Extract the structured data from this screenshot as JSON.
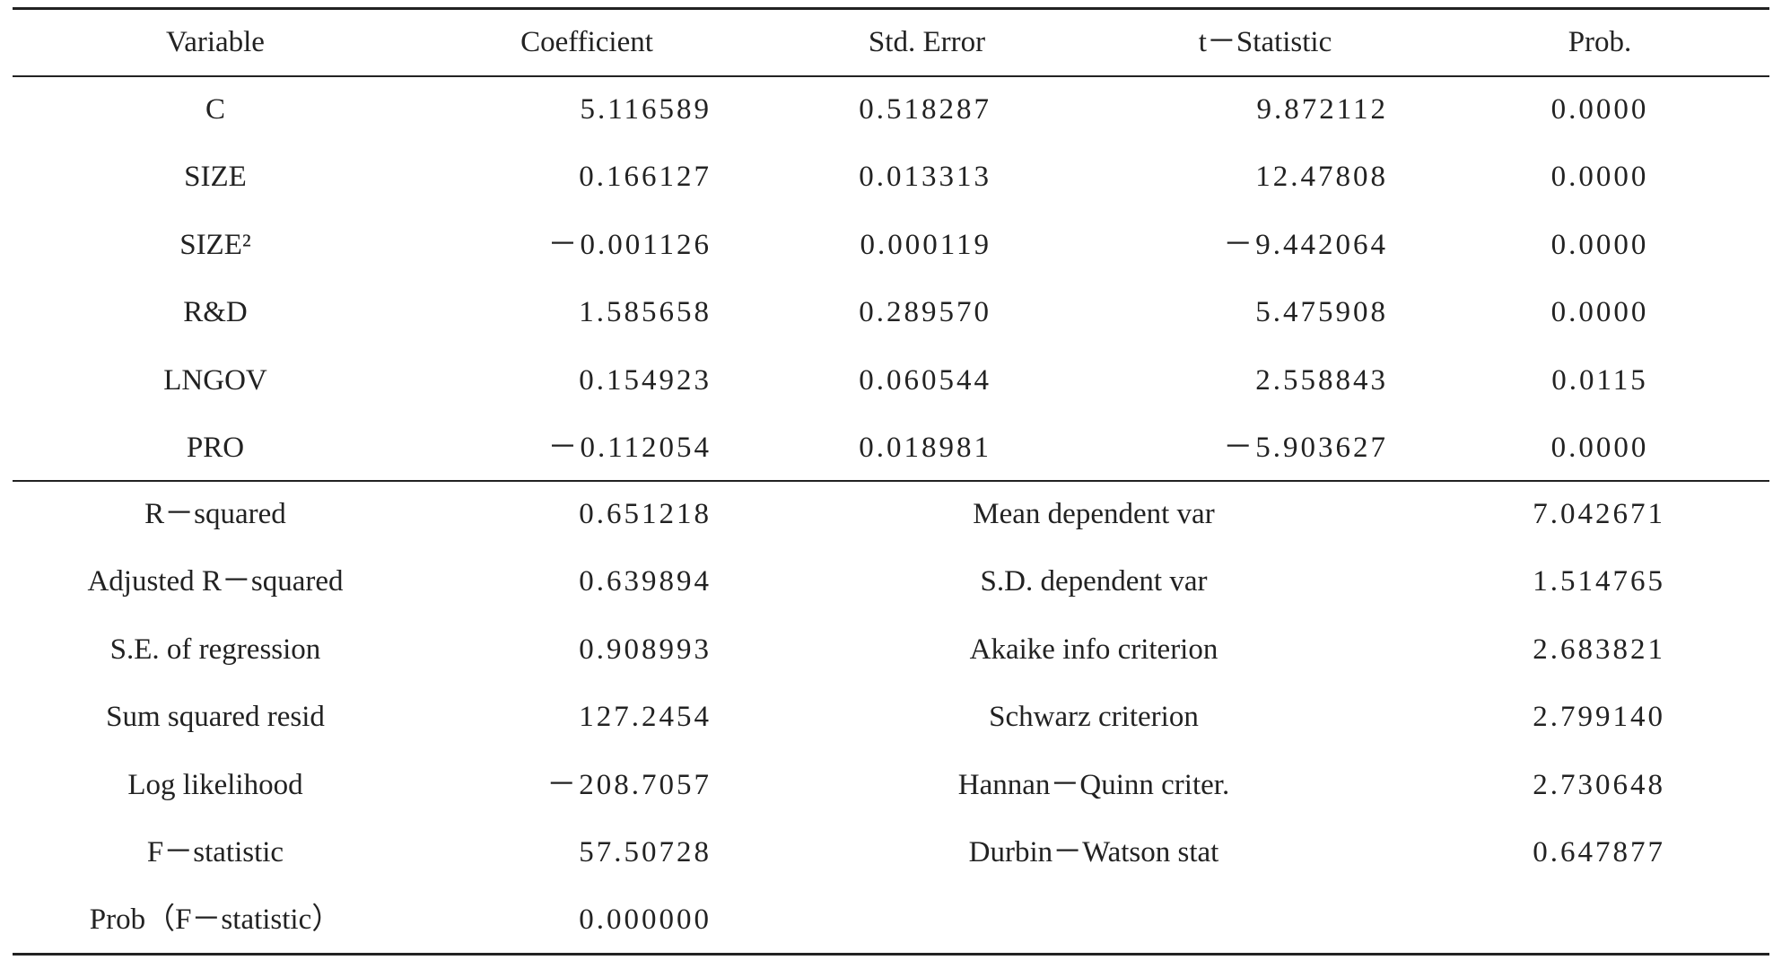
{
  "table": {
    "header": [
      "Variable",
      "Coefficient",
      "Std. Error",
      "t－Statistic",
      "Prob."
    ],
    "rows": [
      [
        "C",
        "5.116589",
        "0.518287",
        "9.872112",
        "0.0000"
      ],
      [
        "SIZE",
        "0.166127",
        "0.013313",
        "12.47808",
        "0.0000"
      ],
      [
        "SIZE²",
        "－0.001126",
        "0.000119",
        "－9.442064",
        "0.0000"
      ],
      [
        "R&D",
        "1.585658",
        "0.289570",
        "5.475908",
        "0.0000"
      ],
      [
        "LNGOV",
        "0.154923",
        "0.060544",
        "2.558843",
        "0.0115"
      ],
      [
        "PRO",
        "－0.112054",
        "0.018981",
        "－5.903627",
        "0.0000"
      ]
    ]
  },
  "stats": {
    "rows": [
      [
        "R－squared",
        "0.651218",
        "Mean dependent var",
        "7.042671"
      ],
      [
        "Adjusted R－squared",
        "0.639894",
        "S.D. dependent var",
        "1.514765"
      ],
      [
        "S.E. of regression",
        "0.908993",
        "Akaike info criterion",
        "2.683821"
      ],
      [
        "Sum squared resid",
        "127.2454",
        "Schwarz criterion",
        "2.799140"
      ],
      [
        "Log likelihood",
        "－208.7057",
        "Hannan－Quinn criter.",
        "2.730648"
      ],
      [
        "F－statistic",
        "57.50728",
        "Durbin－Watson stat",
        "0.647877"
      ],
      [
        "Prob（F－statistic）",
        "0.000000"
      ]
    ]
  }
}
